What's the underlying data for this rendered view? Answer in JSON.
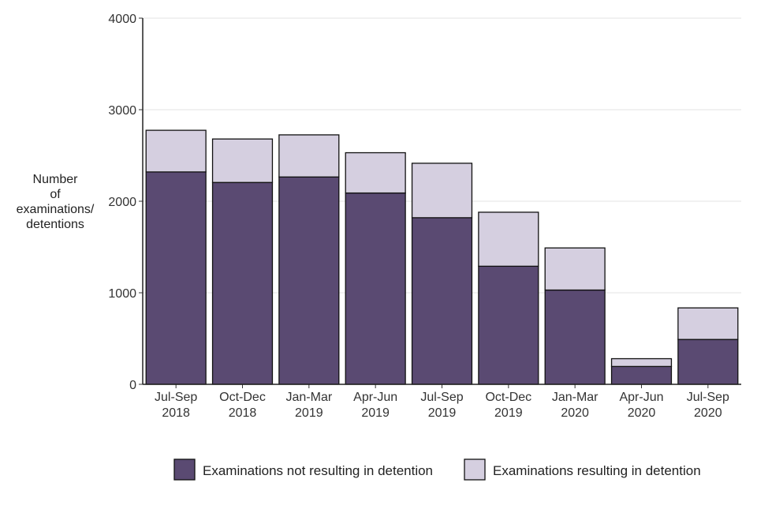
{
  "chart_data": {
    "type": "bar",
    "stacked": true,
    "title": "",
    "xlabel": "",
    "ylabel": [
      "Number",
      "of",
      "examinations/",
      "detentions"
    ],
    "ylim": [
      0,
      4000
    ],
    "yticks": [
      "0",
      "1000",
      "2000",
      "3000",
      "4000"
    ],
    "grid": "horizontal",
    "legend_position": "bottom-right",
    "categories": [
      [
        "Jul-Sep",
        "2018"
      ],
      [
        "Oct-Dec",
        "2018"
      ],
      [
        "Jan-Mar",
        "2019"
      ],
      [
        "Apr-Jun",
        "2019"
      ],
      [
        "Jul-Sep",
        "2019"
      ],
      [
        "Oct-Dec",
        "2019"
      ],
      [
        "Jan-Mar",
        "2020"
      ],
      [
        "Apr-Jun",
        "2020"
      ],
      [
        "Jul-Sep",
        "2020"
      ]
    ],
    "series": [
      {
        "name": "Examinations not resulting in detention",
        "color": "#5a4a72",
        "values": [
          2320,
          2205,
          2265,
          2090,
          1820,
          1290,
          1030,
          195,
          490
        ]
      },
      {
        "name": "Examinations resulting in detention",
        "color": "#d5cfe0",
        "values": [
          455,
          475,
          460,
          440,
          595,
          590,
          460,
          85,
          345
        ]
      }
    ]
  }
}
